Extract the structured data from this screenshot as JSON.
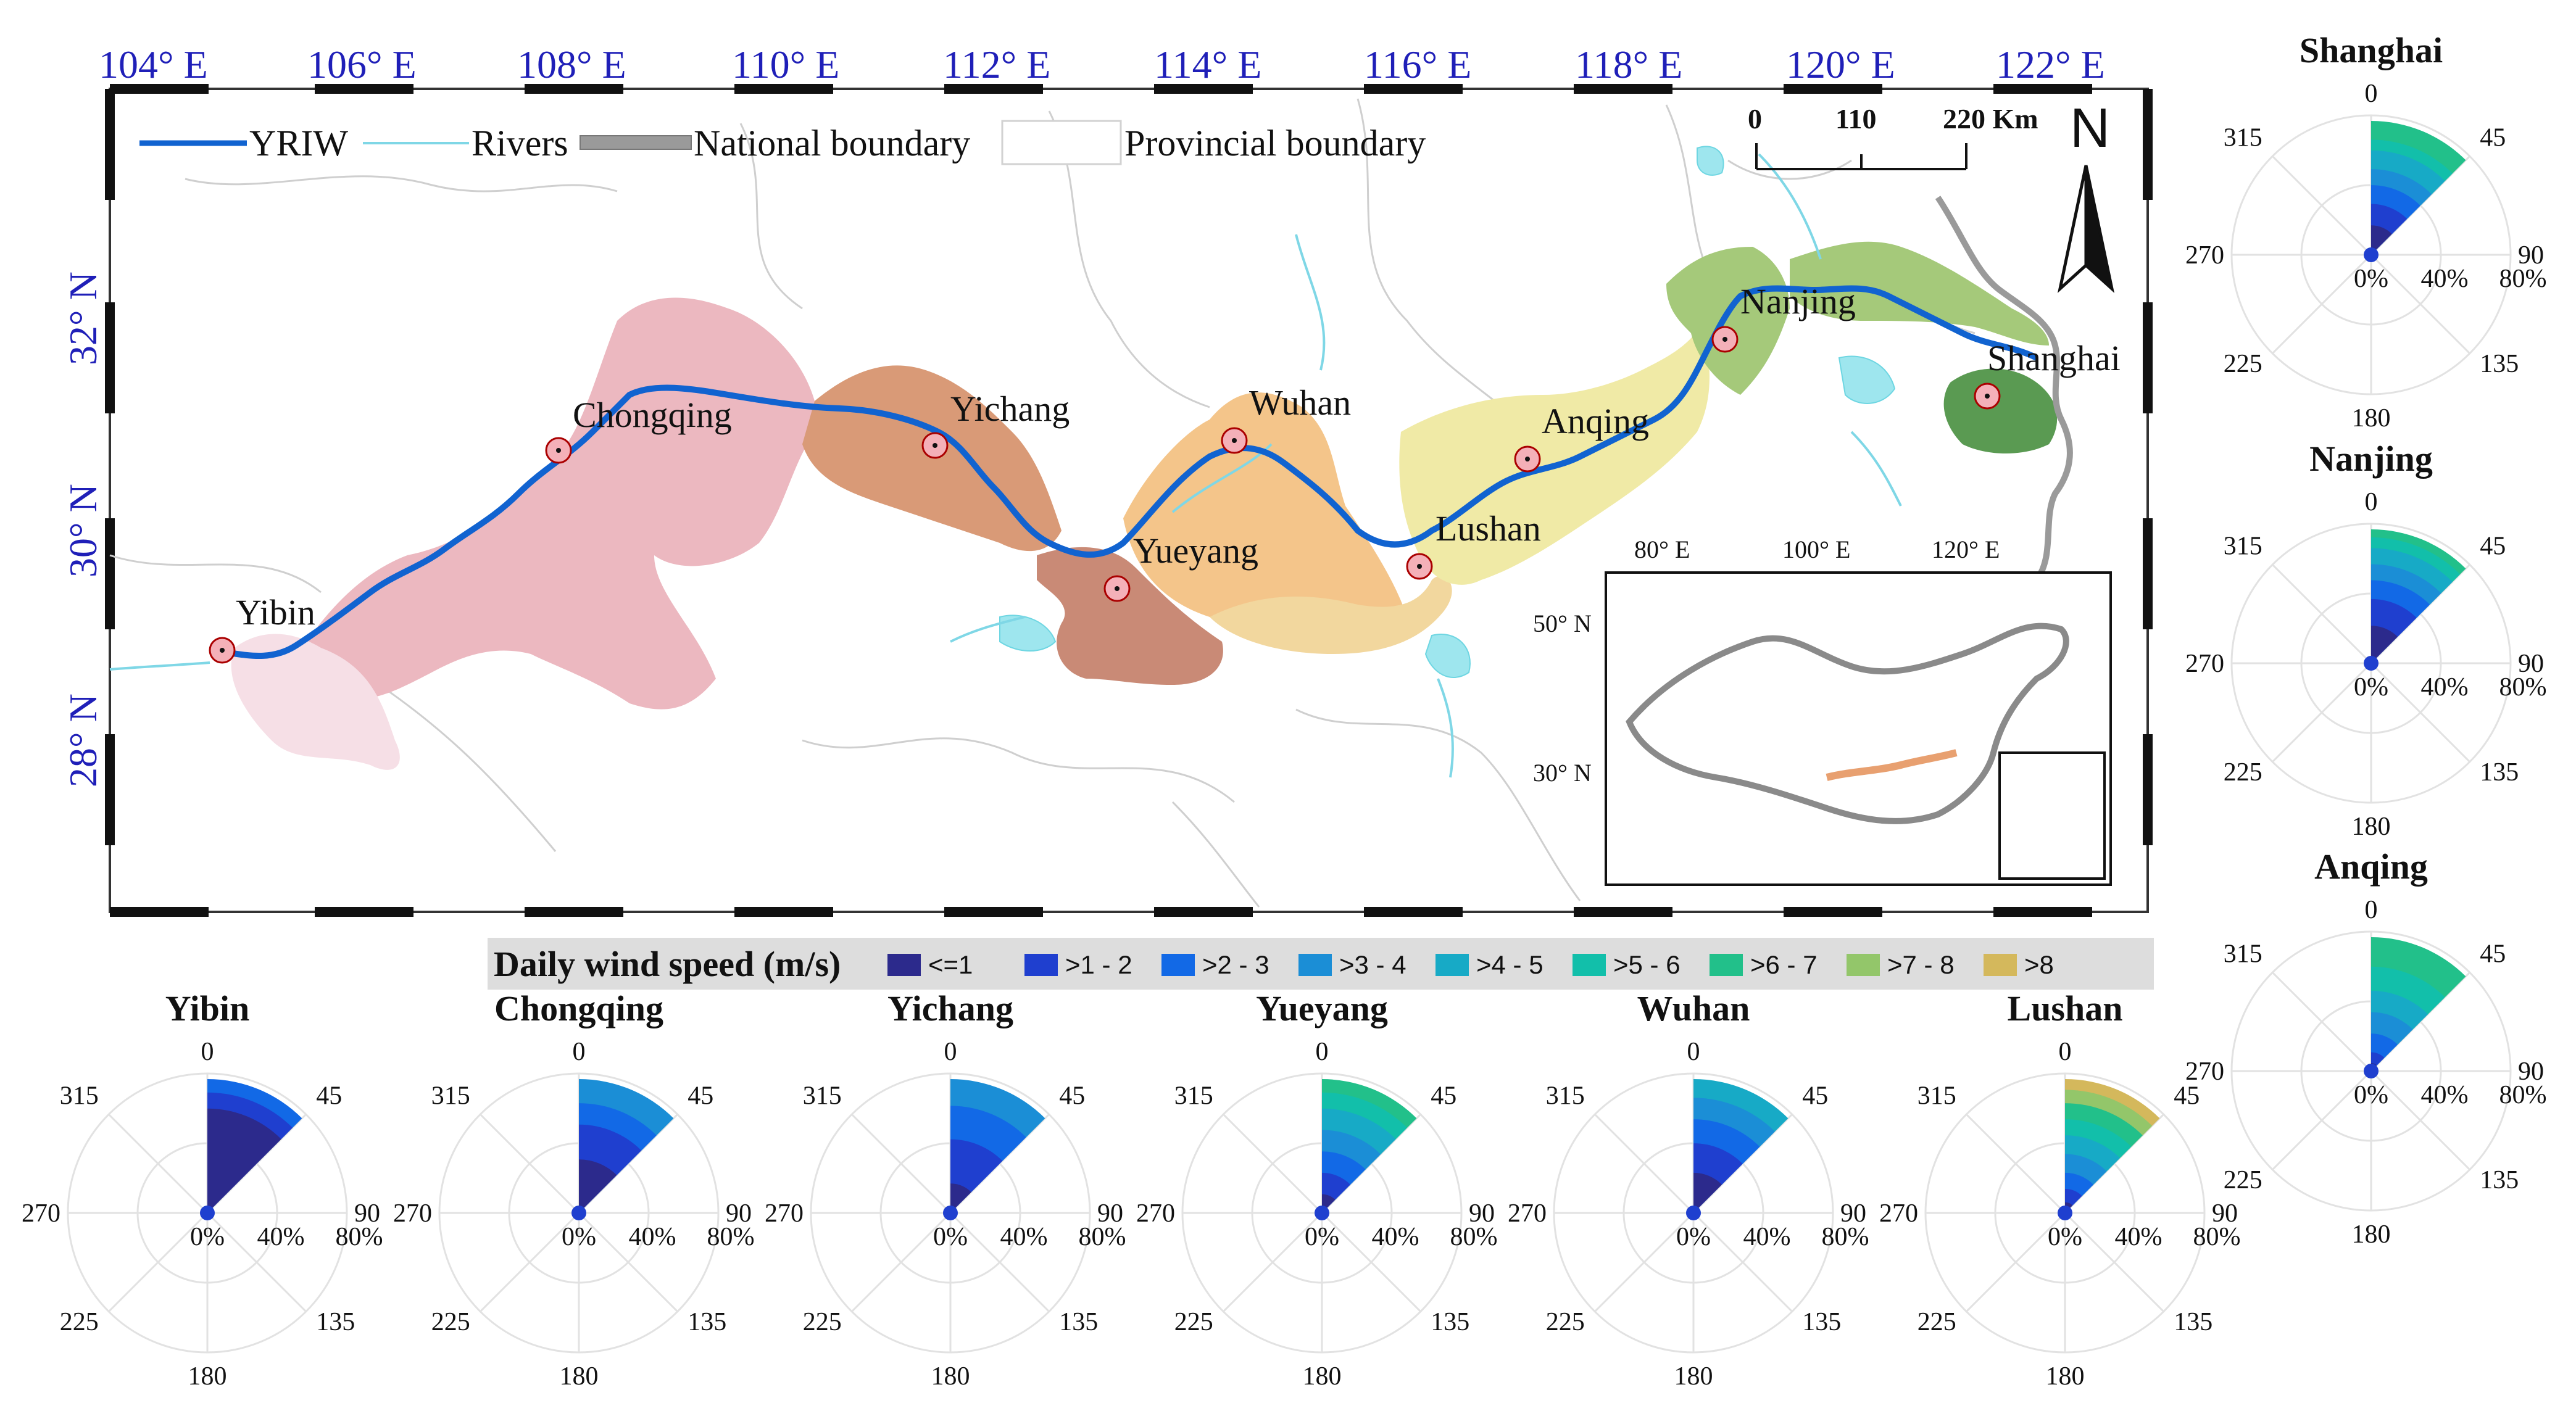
{
  "map": {
    "lon_labels": [
      "104° E",
      "106° E",
      "108° E",
      "110° E",
      "112° E",
      "114° E",
      "116° E",
      "118° E",
      "120° E",
      "122° E"
    ],
    "lat_labels": [
      "32° N",
      "30° N",
      "28° N"
    ],
    "legend": {
      "yriw": "YRIW",
      "rivers": "Rivers",
      "national": "National boundary",
      "provincial": "Provincial boundary"
    },
    "scalebar": {
      "t0": "0",
      "t1": "110",
      "t2": "220 Km"
    },
    "north": "N",
    "cities": [
      "Chongqing",
      "Yichang",
      "Wuhan",
      "Yueyang",
      "Anqing",
      "Nanjing",
      "Shanghai",
      "Lushan",
      "Yibin"
    ],
    "inset": {
      "lon_labels": [
        "80° E",
        "100° E",
        "120° E"
      ],
      "lat_labels": [
        "50° N",
        "30° N"
      ]
    }
  },
  "wind_legend": {
    "title": "Daily wind speed (m/s)",
    "bins": [
      {
        "label": "<=1",
        "color": "#2c2a8c"
      },
      {
        "label": ">1 - 2",
        "color": "#1f3fcf"
      },
      {
        "label": ">2 - 3",
        "color": "#1269e6"
      },
      {
        "label": ">3 - 4",
        "color": "#1b8ed6"
      },
      {
        "label": ">4 - 5",
        "color": "#17aac6"
      },
      {
        "label": ">5 - 6",
        "color": "#12bfaa"
      },
      {
        "label": ">6 - 7",
        "color": "#22c08a"
      },
      {
        "label": ">7 - 8",
        "color": "#93c66a"
      },
      {
        "label": ">8",
        "color": "#d4b85c"
      }
    ]
  },
  "rose_common": {
    "dir_labels": [
      "0",
      "45",
      "90",
      "135",
      "180",
      "225",
      "270",
      "315"
    ],
    "ring_labels": [
      "0%",
      "40%",
      "80%"
    ]
  },
  "roses": [
    {
      "name": "Shanghai",
      "levels": [
        0.22,
        0.38,
        0.52,
        0.64,
        0.78,
        0.86,
        1.0
      ]
    },
    {
      "name": "Nanjing",
      "levels": [
        0.28,
        0.48,
        0.62,
        0.74,
        0.86,
        0.94,
        1.0
      ]
    },
    {
      "name": "Anqing",
      "levels": [
        0.06,
        0.14,
        0.28,
        0.44,
        0.6,
        0.78,
        1.0
      ]
    },
    {
      "name": "Yibin",
      "levels": [
        0.78,
        0.9,
        1.0
      ]
    },
    {
      "name": "Chongqing",
      "levels": [
        0.4,
        0.66,
        0.82,
        1.0
      ]
    },
    {
      "name": "Yichang",
      "levels": [
        0.22,
        0.55,
        0.8,
        1.0
      ]
    },
    {
      "name": "Yueyang",
      "levels": [
        0.14,
        0.3,
        0.46,
        0.62,
        0.78,
        0.9,
        1.0
      ]
    },
    {
      "name": "Wuhan",
      "levels": [
        0.3,
        0.52,
        0.7,
        0.86,
        1.0
      ]
    },
    {
      "name": "Lushan",
      "levels": [
        0.08,
        0.18,
        0.3,
        0.44,
        0.58,
        0.7,
        0.82,
        0.92,
        1.0
      ]
    }
  ]
}
